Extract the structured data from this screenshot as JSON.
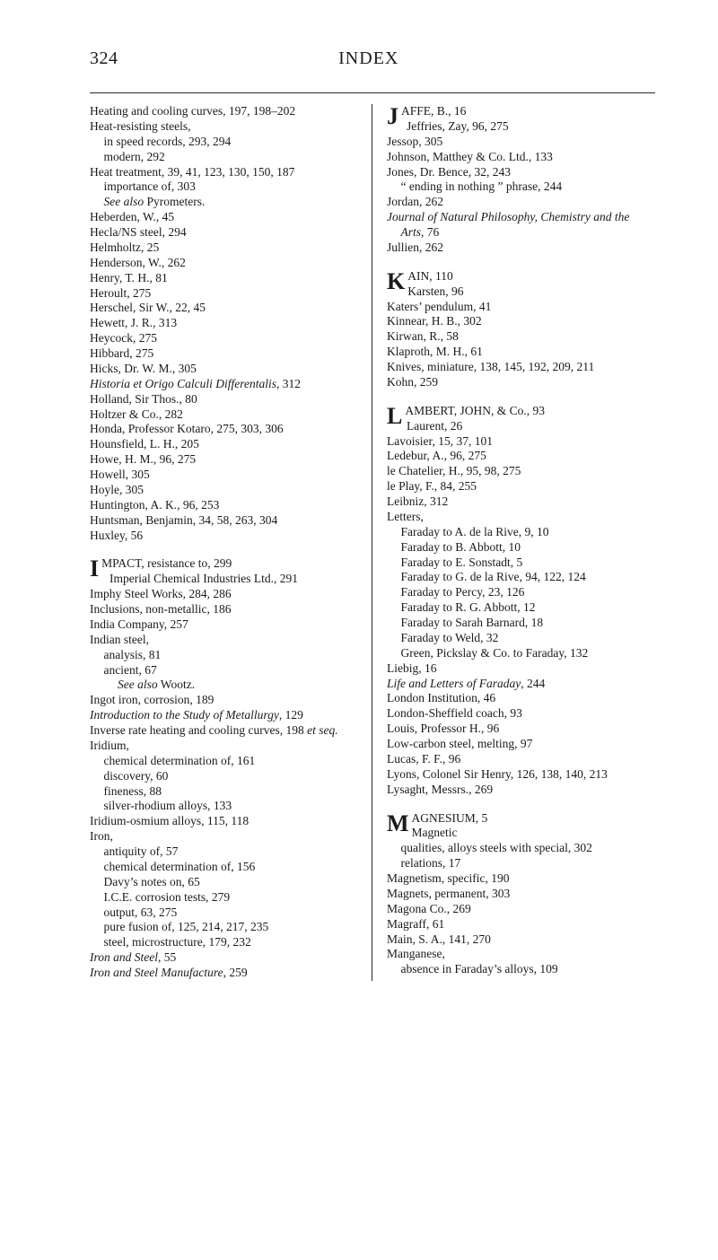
{
  "page_number": "324",
  "header": "INDEX",
  "left_col": {
    "block1": {
      "heating": "Heating and cooling curves, 197, 198–202",
      "heat_resist": "Heat-resisting steels,",
      "heat_resist_sub1": "in speed records, 293, 294",
      "heat_resist_sub2": "modern, 292",
      "heat_treat": "Heat treatment, 39, 41, 123, 130, 150, 187",
      "heat_treat_sub1": "importance of, 303",
      "heat_treat_sub2_prefix": "See also",
      "heat_treat_sub2_rest": " Pyrometers.",
      "heberden": "Heberden, W., 45",
      "hecla": "Hecla/NS steel, 294",
      "helmholtz": "Helmholtz, 25",
      "henderson": "Henderson, W., 262",
      "henry": "Henry, T. H., 81",
      "heroult": "Heroult, 275",
      "herschel": "Herschel, Sir W., 22, 45",
      "hewett": "Hewett, J. R., 313",
      "heycock": "Heycock, 275",
      "hibbard": "Hibbard, 275",
      "hicks": "Hicks, Dr. W. M., 305",
      "historia": "Historia et Origo Calculi Differentalis",
      "historia_rest": ", 312",
      "holland": "Holland, Sir Thos., 80",
      "holtzer": "Holtzer & Co., 282",
      "honda": "Honda, Professor Kotaro, 275, 303, 306",
      "hounsfield": "Hounsfield, L. H., 205",
      "howe": "Howe, H. M., 96, 275",
      "howell": "Howell, 305",
      "hoyle": "Hoyle, 305",
      "huntington": "Huntington, A. K., 96, 253",
      "huntsman": "Huntsman, Benjamin, 34, 58, 263, 304",
      "huxley": "Huxley, 56"
    },
    "block2": {
      "drop": "I",
      "l1": "MPACT, resistance to, 299",
      "l2": "Imperial Chemical Industries Ltd., 291",
      "imphy": "Imphy Steel Works, 284, 286",
      "inclusions": "Inclusions, non-metallic, 186",
      "india": "India Company, 257",
      "indian": "Indian steel,",
      "indian_s1": "analysis, 81",
      "indian_s2": "ancient, 67",
      "indian_s3_pre": "See also",
      "indian_s3_rest": " Wootz.",
      "ingot": "Ingot iron, corrosion, 189",
      "intro": "Introduction to the Study of Metallurgy",
      "intro_rest": ", 129",
      "inverse": "Inverse rate heating and cooling curves, 198 ",
      "inverse_it": "et seq.",
      "iridium": "Iridium,",
      "iridium_s1": "chemical determination of, 161",
      "iridium_s2": "discovery, 60",
      "iridium_s3": "fineness, 88",
      "iridium_s4": "silver-rhodium alloys, 133",
      "iri_os": "Iridium-osmium alloys, 115, 118",
      "iron": "Iron,",
      "iron_s1": "antiquity of, 57",
      "iron_s2": "chemical determination of, 156",
      "iron_s3": "Davy’s notes on, 65",
      "iron_s4": "I.C.E. corrosion tests, 279",
      "iron_s5": "output, 63, 275",
      "iron_s6": "pure fusion of, 125, 214, 217, 235",
      "iron_s7": "steel, microstructure, 179, 232",
      "iron_steel": "Iron and Steel",
      "iron_steel_rest": ", 55",
      "iron_manu": "Iron and Steel Manufacture",
      "iron_manu_rest": ", 259"
    }
  },
  "right_col": {
    "blockJ": {
      "drop": "J",
      "l1": "AFFE, B., 16",
      "l2": "Jeffries, Zay, 96, 275",
      "jessop": "Jessop, 305",
      "johnson": "Johnson, Matthey & Co. Ltd., 133",
      "jones": "Jones, Dr. Bence, 32, 243",
      "jones_s1": "“ ending in nothing ” phrase, 244",
      "jordan": "Jordan, 262",
      "journal": "Journal of Natural Philosophy, Chemistry and the Arts",
      "journal_rest": ", 76",
      "jullien": "Jullien, 262"
    },
    "blockK": {
      "drop": "K",
      "l1": "AIN, 110",
      "l2": "Karsten, 96",
      "katers": "Katers’ pendulum, 41",
      "kinnear": "Kinnear, H. B., 302",
      "kirwan": "Kirwan, R., 58",
      "klaproth": "Klaproth, M. H., 61",
      "knives": "Knives, miniature, 138, 145, 192, 209, 211",
      "kohn": "Kohn, 259"
    },
    "blockL": {
      "drop": "L",
      "l1": "AMBERT, JOHN, & Co., 93",
      "l2": "Laurent, 26",
      "lavoisier": "Lavoisier, 15, 37, 101",
      "ledebur": "Ledebur, A., 96, 275",
      "lechat": "le Chatelier, H., 95, 98, 275",
      "leplay": "le Play, F., 84, 255",
      "leibniz": "Leibniz, 312",
      "letters": "Letters,",
      "letters_s1": "Faraday to A. de la Rive, 9, 10",
      "letters_s2": "Faraday to B. Abbott, 10",
      "letters_s3": "Faraday to E. Sonstadt, 5",
      "letters_s4": "Faraday to G. de la Rive, 94, 122, 124",
      "letters_s5": "Faraday to Percy, 23, 126",
      "letters_s6": "Faraday to R. G. Abbott, 12",
      "letters_s7": "Faraday to Sarah Barnard, 18",
      "letters_s8": "Faraday to Weld, 32",
      "letters_s9": "Green, Pickslay & Co. to Faraday, 132",
      "liebig": "Liebig, 16",
      "life": "Life and Letters of Faraday",
      "life_rest": ", 244",
      "london_inst": "London Institution, 46",
      "london_shef": "London-Sheffield coach, 93",
      "louis": "Louis, Professor H., 96",
      "lowc": "Low-carbon steel, melting, 97",
      "lucas": "Lucas, F. F., 96",
      "lyons": "Lyons, Colonel Sir Henry, 126, 138, 140, 213",
      "lysaght": "Lysaght, Messrs., 269"
    },
    "blockM": {
      "drop": "M",
      "l1": "AGNESIUM, 5",
      "l2": "Magnetic",
      "mag_s1": "qualities, alloys steels with special, 302",
      "mag_s2": "relations, 17",
      "magnetism": "Magnetism, specific, 190",
      "magnets": "Magnets, permanent, 303",
      "magona": "Magona Co., 269",
      "magraff": "Magraff, 61",
      "main": "Main, S. A., 141, 270",
      "manganese": "Manganese,",
      "manganese_s1": "absence in Faraday’s alloys, 109"
    }
  }
}
